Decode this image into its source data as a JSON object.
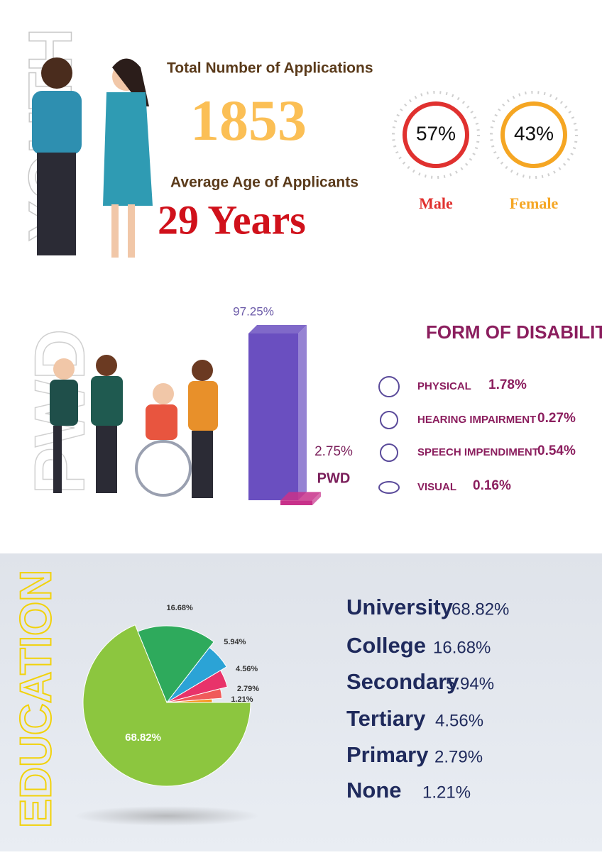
{
  "youth": {
    "side_label": "YOUTH",
    "total_label": "Total Number of Applications",
    "total": 1853,
    "age_label": "Average  Age of Applicants",
    "age": "29 Years"
  },
  "pwd": {
    "side_label": "PWD"
  },
  "education": {
    "side_label": "EDUCATION"
  },
  "chart_data": [
    {
      "type": "ring",
      "categories": [
        "Male",
        "Female"
      ],
      "values": [
        57,
        43
      ],
      "value_labels": [
        "57%",
        "43%"
      ],
      "colors": [
        "#e0312f",
        "#f5a623"
      ]
    },
    {
      "type": "bar3d",
      "categories": [
        null,
        "PWD"
      ],
      "values": [
        97.25,
        2.75
      ],
      "value_labels": [
        "97.25%",
        "2.75%"
      ],
      "colors": [
        "#6a4fc0",
        "#c8318a"
      ]
    },
    {
      "type": "list",
      "title": "FORM OF DISABILITY",
      "categories": [
        "PHYSICAL",
        "HEARING IMPAIRMENT",
        "SPEECH IMPENDIMENT",
        "VISUAL"
      ],
      "values": [
        1.78,
        0.27,
        0.54,
        0.16
      ],
      "value_labels": [
        "1.78%",
        "0.27%",
        "0.54%",
        "0.16%"
      ]
    },
    {
      "type": "pie",
      "categories": [
        "University",
        "College",
        "Secondary",
        "Tertiary",
        "Primary",
        "None"
      ],
      "values": [
        68.82,
        16.68,
        5.94,
        4.56,
        2.79,
        1.21
      ],
      "value_labels": [
        "68.82%",
        "16.68%",
        "5.94%",
        "4.56%",
        "2.79%",
        "1.21%"
      ],
      "colors": [
        "#8cc63f",
        "#2eaa5c",
        "#2ba3d6",
        "#e8336a",
        "#f05a5a",
        "#f7931e"
      ]
    }
  ]
}
